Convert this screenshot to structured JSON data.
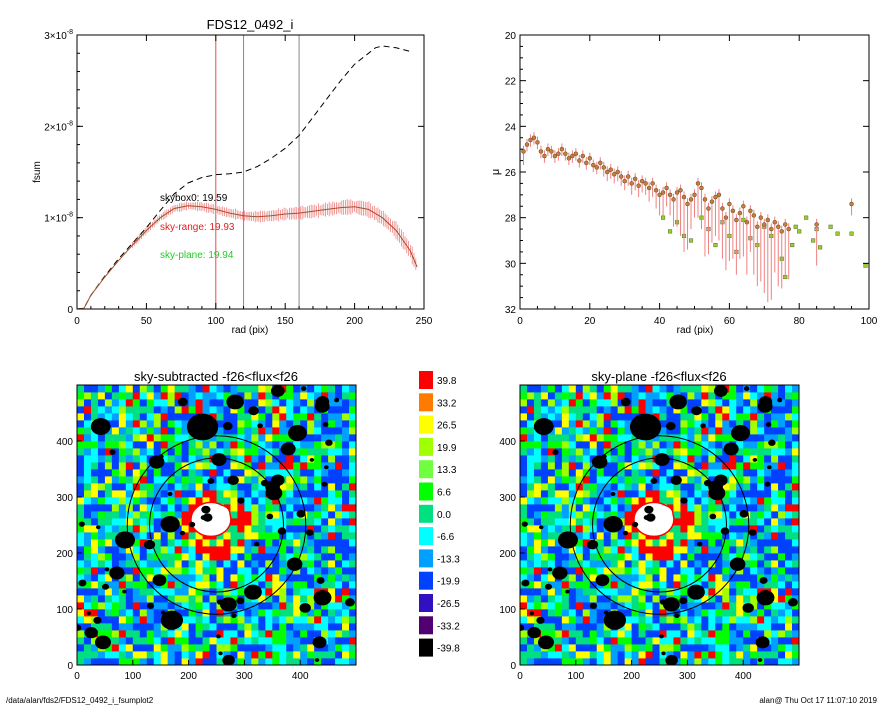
{
  "footer": {
    "path": "/data/alan/fds2/FDS12_0492_i_fsumplot2",
    "stamp": "alan@  Thu Oct 17 11:07:10 2019"
  },
  "chart_data": [
    {
      "type": "line",
      "title": "FDS12_0492_i",
      "xlabel": "rad (pix)",
      "ylabel": "fsum",
      "xlim": [
        0,
        250
      ],
      "ylim": [
        0,
        3e-08
      ],
      "x_ticks": [
        0,
        50,
        100,
        150,
        200,
        250
      ],
      "y_ticks": [
        {
          "value": 0,
          "label": "0"
        },
        {
          "value": 1e-08,
          "label": "1×10",
          "exp": "-8"
        },
        {
          "value": 2e-08,
          "label": "2×10",
          "exp": "-8"
        },
        {
          "value": 3e-08,
          "label": "3×10",
          "exp": "-8"
        }
      ],
      "vlines": [
        {
          "x": 100,
          "color": "#e05050"
        },
        {
          "x": 120,
          "color": "#888888"
        },
        {
          "x": 160,
          "color": "#888888"
        }
      ],
      "annotations": [
        {
          "text": "skybox0: 19.59",
          "color": "#000000"
        },
        {
          "text": "sky-range: 19.93",
          "color": "#e02020"
        },
        {
          "text": "sky-plane: 19.94",
          "color": "#22cc22"
        }
      ],
      "series": [
        {
          "style": "dashed",
          "color": "#000000",
          "x": [
            0,
            5,
            10,
            20,
            30,
            40,
            50,
            60,
            70,
            80,
            90,
            100,
            110,
            120,
            130,
            140,
            150,
            160,
            170,
            180,
            190,
            200,
            210,
            215,
            220,
            230,
            240
          ],
          "y": [
            0,
            8e-11,
            1.5e-09,
            3.6e-09,
            5.5e-09,
            7.2e-09,
            8.9e-09,
            1.08e-08,
            1.26e-08,
            1.38e-08,
            1.44e-08,
            1.47e-08,
            1.48e-08,
            1.5e-08,
            1.56e-08,
            1.65e-08,
            1.76e-08,
            1.9e-08,
            2.1e-08,
            2.3e-08,
            2.5e-08,
            2.68e-08,
            2.8e-08,
            2.86e-08,
            2.88e-08,
            2.86e-08,
            2.82e-08
          ]
        },
        {
          "style": "solid",
          "color": "#a0522d",
          "x": [
            0,
            5,
            10,
            20,
            30,
            40,
            50,
            60,
            70,
            80,
            90,
            100,
            110,
            120,
            130,
            140,
            150,
            160,
            170,
            180,
            190,
            200,
            210,
            220,
            230,
            240,
            245
          ],
          "y": [
            0,
            8e-11,
            1.5e-09,
            3.5e-09,
            5.3e-09,
            7e-09,
            8.6e-09,
            1e-08,
            1.1e-08,
            1.13e-08,
            1.12e-08,
            1.09e-08,
            1.05e-08,
            1.02e-08,
            1.01e-08,
            1.02e-08,
            1.04e-08,
            1.05e-08,
            1.07e-08,
            1.09e-08,
            1.11e-08,
            1.12e-08,
            1.09e-08,
            1e-08,
            8.6e-09,
            6.4e-09,
            4.6e-09
          ]
        }
      ]
    },
    {
      "type": "scatter",
      "xlabel": "rad (pix)",
      "ylabel": "μ",
      "xlim": [
        0,
        100
      ],
      "ylim": [
        20,
        32
      ],
      "y_inverted": true,
      "x_ticks": [
        0,
        20,
        40,
        60,
        80,
        100
      ],
      "y_ticks": [
        20,
        22,
        24,
        26,
        28,
        30,
        32
      ],
      "series": [
        {
          "marker": "circle",
          "color": "#c08040",
          "x": [
            1,
            2,
            3,
            4,
            5,
            6,
            7,
            8,
            9,
            10,
            11,
            12,
            13,
            14,
            15,
            16,
            17,
            18,
            19,
            20,
            21,
            22,
            23,
            24,
            25,
            26,
            27,
            28,
            29,
            30,
            31,
            32,
            33,
            34,
            35,
            36,
            37,
            38,
            39,
            40,
            41,
            42,
            43,
            44,
            45,
            46,
            47,
            48,
            49,
            50,
            51,
            52,
            53,
            54,
            55,
            56,
            57,
            58,
            59,
            60,
            61,
            62,
            63,
            64,
            65,
            66,
            67,
            68,
            69,
            70,
            71,
            72,
            73,
            74,
            75,
            76,
            77,
            85,
            95
          ],
          "y": [
            25.1,
            24.8,
            24.6,
            24.5,
            24.7,
            25.1,
            25.3,
            25.0,
            25.1,
            25.3,
            25.2,
            25.0,
            25.2,
            25.4,
            25.3,
            25.2,
            25.5,
            25.3,
            25.6,
            25.4,
            25.7,
            25.8,
            25.6,
            25.8,
            26.0,
            25.9,
            26.1,
            26.0,
            26.2,
            26.4,
            26.2,
            26.5,
            26.3,
            26.6,
            26.4,
            26.5,
            26.7,
            26.5,
            26.8,
            27.0,
            26.9,
            26.7,
            27.0,
            27.2,
            26.9,
            26.8,
            27.1,
            27.4,
            27.2,
            27.0,
            26.5,
            26.7,
            27.2,
            27.6,
            27.3,
            27.1,
            27.0,
            27.6,
            28.0,
            27.4,
            27.7,
            28.1,
            27.8,
            27.5,
            28.2,
            27.7,
            27.9,
            28.4,
            28.0,
            28.3,
            28.1,
            28.5,
            28.2,
            28.4,
            28.6,
            28.3,
            28.5,
            28.3,
            27.4
          ],
          "err_lower": [
            0.6,
            0.3,
            0.3,
            0.3,
            0.3,
            0.3,
            0.3,
            0.3,
            0.3,
            0.3,
            0.3,
            0.3,
            0.3,
            0.3,
            0.3,
            0.3,
            0.3,
            0.3,
            0.3,
            0.3,
            0.3,
            0.3,
            0.3,
            0.4,
            0.4,
            0.4,
            0.4,
            0.4,
            0.4,
            0.4,
            0.4,
            0.5,
            0.5,
            0.5,
            0.5,
            0.5,
            0.6,
            0.6,
            0.8,
            0.9,
            1.0,
            0.8,
            0.9,
            1.2,
            1.5,
            2.0,
            2.4,
            2.0,
            1.3,
            1.0,
            1.5,
            1.8,
            2.5,
            2.0,
            1.8,
            1.7,
            2.0,
            2.2,
            2.3,
            2.5,
            2.1,
            2.4,
            2.0,
            2.2,
            2.3,
            1.8,
            2.6,
            2.6,
            2.8,
            3.0,
            3.6,
            3.1,
            2.2,
            2.6,
            2.5,
            2.3,
            2.2,
            1.8,
            0.5
          ]
        },
        {
          "marker": "square",
          "color": "#9acd32",
          "x": [
            41,
            43,
            45,
            47,
            49,
            52,
            54,
            56,
            58,
            60,
            62,
            64,
            66,
            68,
            70,
            72,
            75,
            76,
            78,
            79,
            80,
            82,
            84,
            85,
            86,
            89,
            91,
            95,
            99
          ],
          "y": [
            28.0,
            28.6,
            28.2,
            28.8,
            29.0,
            28.0,
            28.5,
            29.2,
            28.2,
            28.8,
            29.5,
            28.1,
            28.9,
            29.2,
            28.4,
            28.8,
            29.8,
            30.6,
            29.2,
            28.4,
            28.6,
            28.0,
            29.0,
            28.5,
            29.3,
            28.4,
            28.7,
            28.7,
            30.1
          ]
        }
      ]
    },
    {
      "type": "heatmap",
      "title": "sky-subtracted -f26<flux<f26",
      "xlim": [
        0,
        500
      ],
      "ylim": [
        0,
        500
      ],
      "x_ticks": [
        0,
        100,
        200,
        300,
        400
      ],
      "y_ticks": [
        0,
        100,
        200,
        300,
        400
      ],
      "center": [
        250,
        250
      ],
      "circle_radii": [
        120,
        160
      ]
    },
    {
      "type": "heatmap",
      "title": "sky-plane -f26<flux<f26",
      "xlim": [
        0,
        500
      ],
      "ylim": [
        0,
        500
      ],
      "x_ticks": [
        0,
        100,
        200,
        300,
        400
      ],
      "y_ticks": [
        0,
        100,
        200,
        300,
        400
      ],
      "center": [
        250,
        250
      ],
      "circle_radii": [
        120,
        160
      ]
    }
  ],
  "colorbar": {
    "levels": [
      {
        "label": "39.8",
        "color": "#ff0000"
      },
      {
        "label": "33.2",
        "color": "#ff7a00"
      },
      {
        "label": "26.5",
        "color": "#ffff00"
      },
      {
        "label": "19.9",
        "color": "#a0ff00"
      },
      {
        "label": "13.3",
        "color": "#70ff40"
      },
      {
        "label": "6.6",
        "color": "#00ff00"
      },
      {
        "label": "0.0",
        "color": "#00e080"
      },
      {
        "label": "-6.6",
        "color": "#00ffff"
      },
      {
        "label": "-13.3",
        "color": "#00a0ff"
      },
      {
        "label": "-19.9",
        "color": "#0040ff"
      },
      {
        "label": "-26.5",
        "color": "#3010c0"
      },
      {
        "label": "-33.2",
        "color": "#500070"
      },
      {
        "label": "-39.8",
        "color": "#000000"
      }
    ]
  }
}
